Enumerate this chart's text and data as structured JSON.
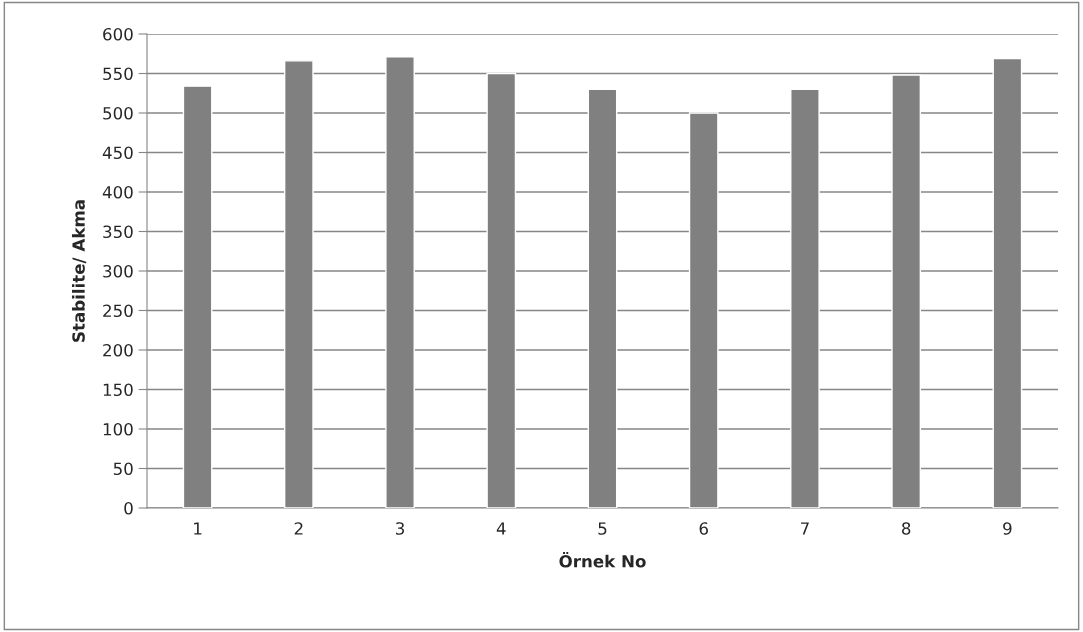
{
  "chart_data": {
    "type": "bar",
    "xlabel": "Örnek No",
    "ylabel": "Stabilite/ Akma",
    "categories": [
      "1",
      "2",
      "3",
      "4",
      "5",
      "6",
      "7",
      "8",
      "9"
    ],
    "values": [
      534,
      566,
      571,
      550,
      530,
      500,
      530,
      548,
      569
    ],
    "color": "#808080",
    "ylim": [
      0,
      600
    ],
    "yticks": [
      0,
      50,
      100,
      150,
      200,
      250,
      300,
      350,
      400,
      450,
      500,
      550,
      600
    ],
    "grid": "y",
    "legend": false
  }
}
